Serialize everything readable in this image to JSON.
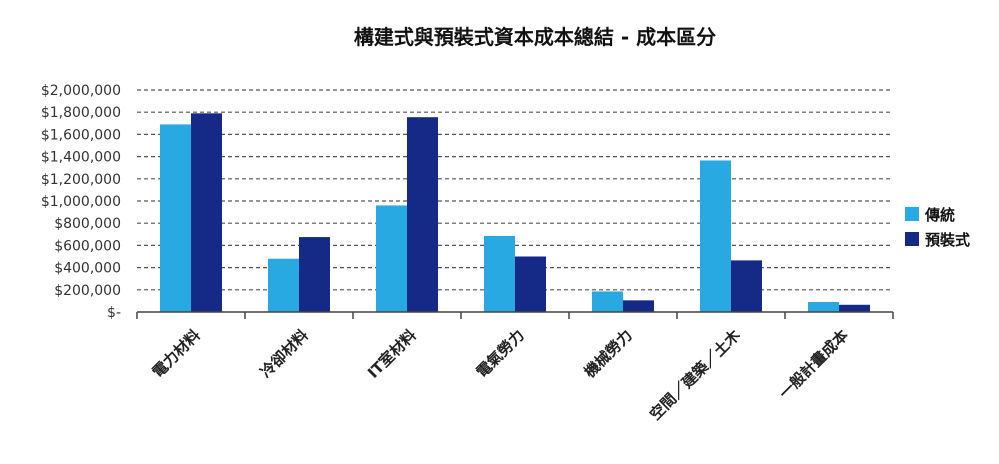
{
  "chart_data": {
    "type": "bar",
    "title": "構建式與預裝式資本成本總結 - 成本區分",
    "xlabel": "",
    "ylabel": "",
    "categories": [
      "電力材料",
      "冷卻材料",
      "IT室材料",
      "電氣勞力",
      "機械勞力",
      "空間／建築／土木",
      "一般計畫成本"
    ],
    "series": [
      {
        "name": "傳統",
        "values": [
          1690000,
          480000,
          960000,
          685000,
          185000,
          1365000,
          90000
        ],
        "color": "#29a9e1"
      },
      {
        "name": "預裝式",
        "values": [
          1790000,
          675000,
          1755000,
          500000,
          105000,
          465000,
          65000
        ],
        "color": "#152a87"
      }
    ],
    "ylim": [
      0,
      2000000
    ],
    "yticks": [
      0,
      200000,
      400000,
      600000,
      800000,
      1000000,
      1200000,
      1400000,
      1600000,
      1800000,
      2000000
    ],
    "ytick_labels": [
      "$-",
      "$200,000",
      "$400,000",
      "$600,000",
      "$800,000",
      "$1,000,000",
      "$1,200,000",
      "$1,400,000",
      "$1,600,000",
      "$1,800,000",
      "$2,000,000"
    ],
    "grid": true,
    "legend_position": "right"
  }
}
